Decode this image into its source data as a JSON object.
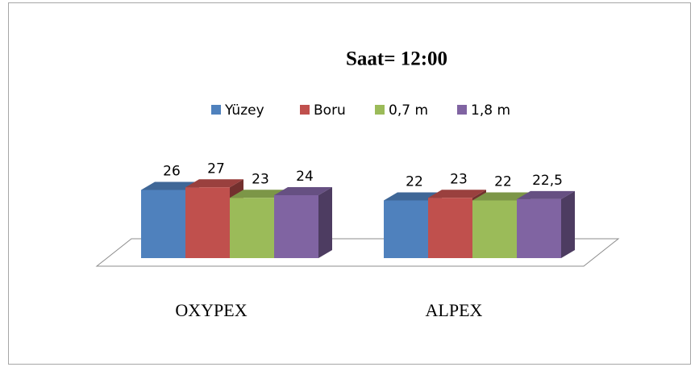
{
  "chart_data": {
    "type": "bar3d",
    "title": "Saat= 12:00",
    "categories": [
      "OXYPEX",
      "ALPEX"
    ],
    "series": [
      {
        "name": "Yüzey",
        "color": "#4f81bd",
        "values": [
          26,
          22
        ]
      },
      {
        "name": "Boru",
        "color": "#c0504d",
        "values": [
          27,
          23
        ]
      },
      {
        "name": "0,7 m",
        "color": "#9bbb59",
        "values": [
          23,
          22
        ]
      },
      {
        "name": "1,8 m",
        "color": "#8064a2",
        "values": [
          24,
          22.5
        ],
        "value_labels": [
          "24",
          "22,5"
        ]
      }
    ],
    "legend": "top"
  }
}
